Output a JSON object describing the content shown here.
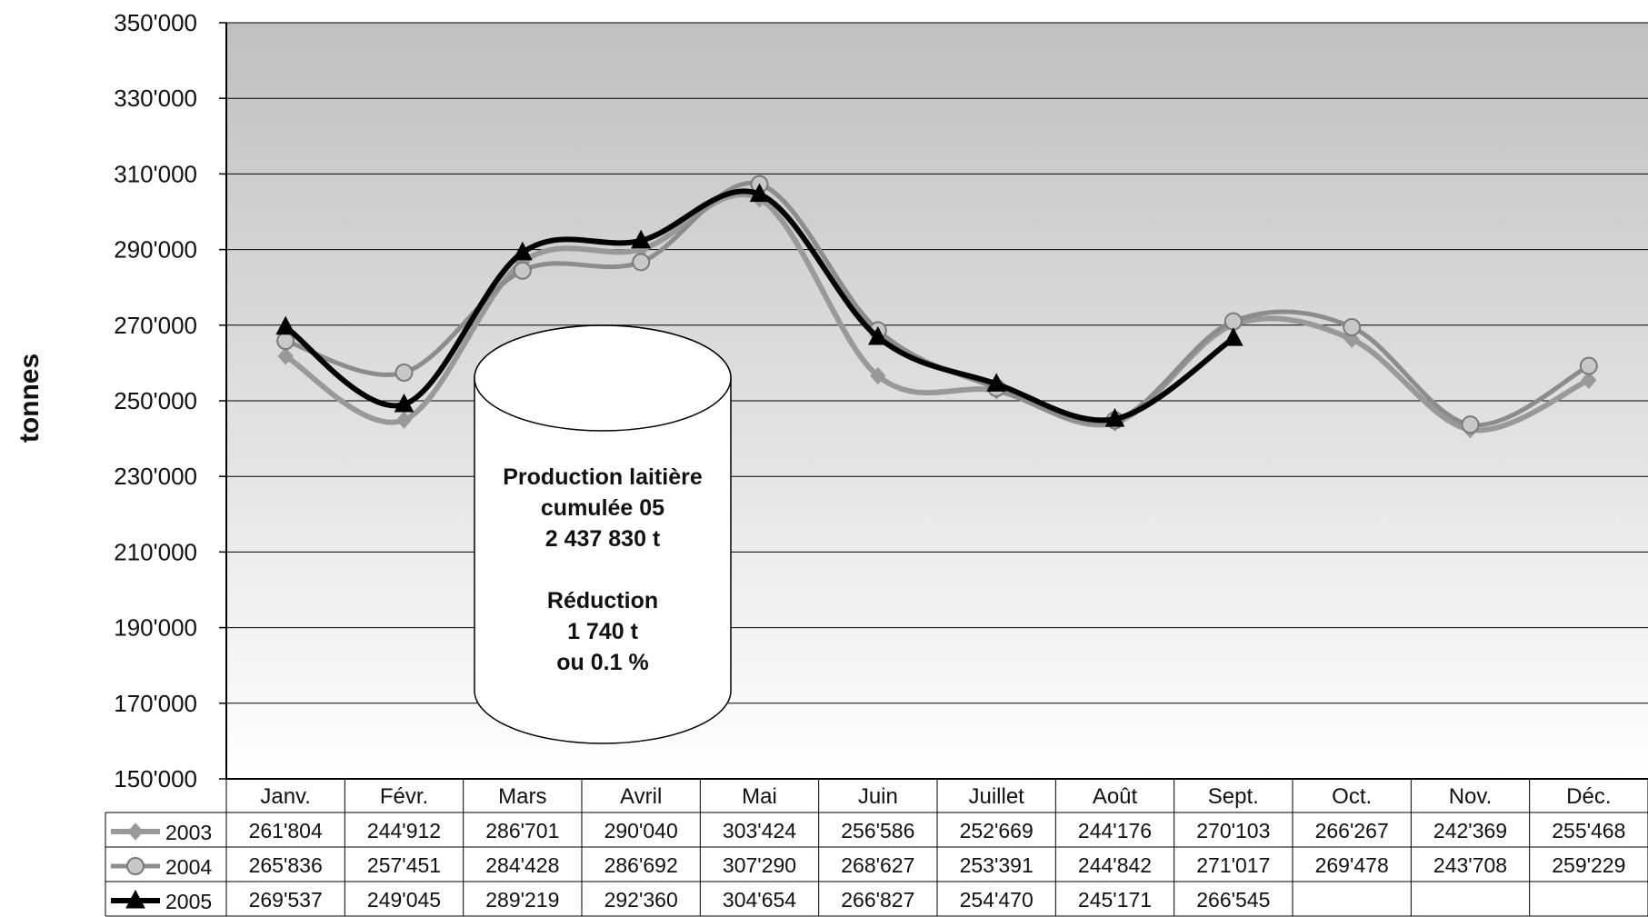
{
  "chart_data": {
    "type": "line",
    "title": "",
    "xlabel": "",
    "ylabel": "tonnes",
    "ylim": [
      150000,
      350000
    ],
    "ytick_values": [
      150000,
      170000,
      190000,
      210000,
      230000,
      250000,
      270000,
      290000,
      310000,
      330000,
      350000
    ],
    "ytick_labels": [
      "150'000",
      "170'000",
      "190'000",
      "210'000",
      "230'000",
      "250'000",
      "270'000",
      "290'000",
      "310'000",
      "330'000",
      "350'000"
    ],
    "grid": true,
    "legend": "data-table-left",
    "categories": [
      "Janv.",
      "Févr.",
      "Mars",
      "Avril",
      "Mai",
      "Juin",
      "Juillet",
      "Août",
      "Sept.",
      "Oct.",
      "Nov.",
      "Déc."
    ],
    "series": [
      {
        "name": "2003",
        "color": "#999999",
        "marker": "diamond",
        "values": [
          261804,
          244912,
          286701,
          290040,
          303424,
          256586,
          252669,
          244176,
          270103,
          266267,
          242369,
          255468
        ],
        "labels": [
          "261'804",
          "244'912",
          "286'701",
          "290'040",
          "303'424",
          "256'586",
          "252'669",
          "244'176",
          "270'103",
          "266'267",
          "242'369",
          "255'468"
        ]
      },
      {
        "name": "2004",
        "color": "#8c8c8c",
        "marker": "circle",
        "values": [
          265836,
          257451,
          284428,
          286692,
          307290,
          268627,
          253391,
          244842,
          271017,
          269478,
          243708,
          259229
        ],
        "labels": [
          "265'836",
          "257'451",
          "284'428",
          "286'692",
          "307'290",
          "268'627",
          "253'391",
          "244'842",
          "271'017",
          "269'478",
          "243'708",
          "259'229"
        ]
      },
      {
        "name": "2005",
        "color": "#000000",
        "marker": "triangle",
        "values": [
          269537,
          249045,
          289219,
          292360,
          304654,
          266827,
          254470,
          245171,
          266545,
          null,
          null,
          null
        ],
        "labels": [
          "269'537",
          "249'045",
          "289'219",
          "292'360",
          "304'654",
          "266'827",
          "254'470",
          "245'171",
          "266'545",
          "",
          "",
          ""
        ]
      }
    ],
    "annotation": {
      "lines": [
        "Production laitière",
        "cumulée 05",
        "2 437 830 t",
        "",
        "Réduction",
        "1 740 t",
        "ou  0.1 %"
      ]
    }
  }
}
